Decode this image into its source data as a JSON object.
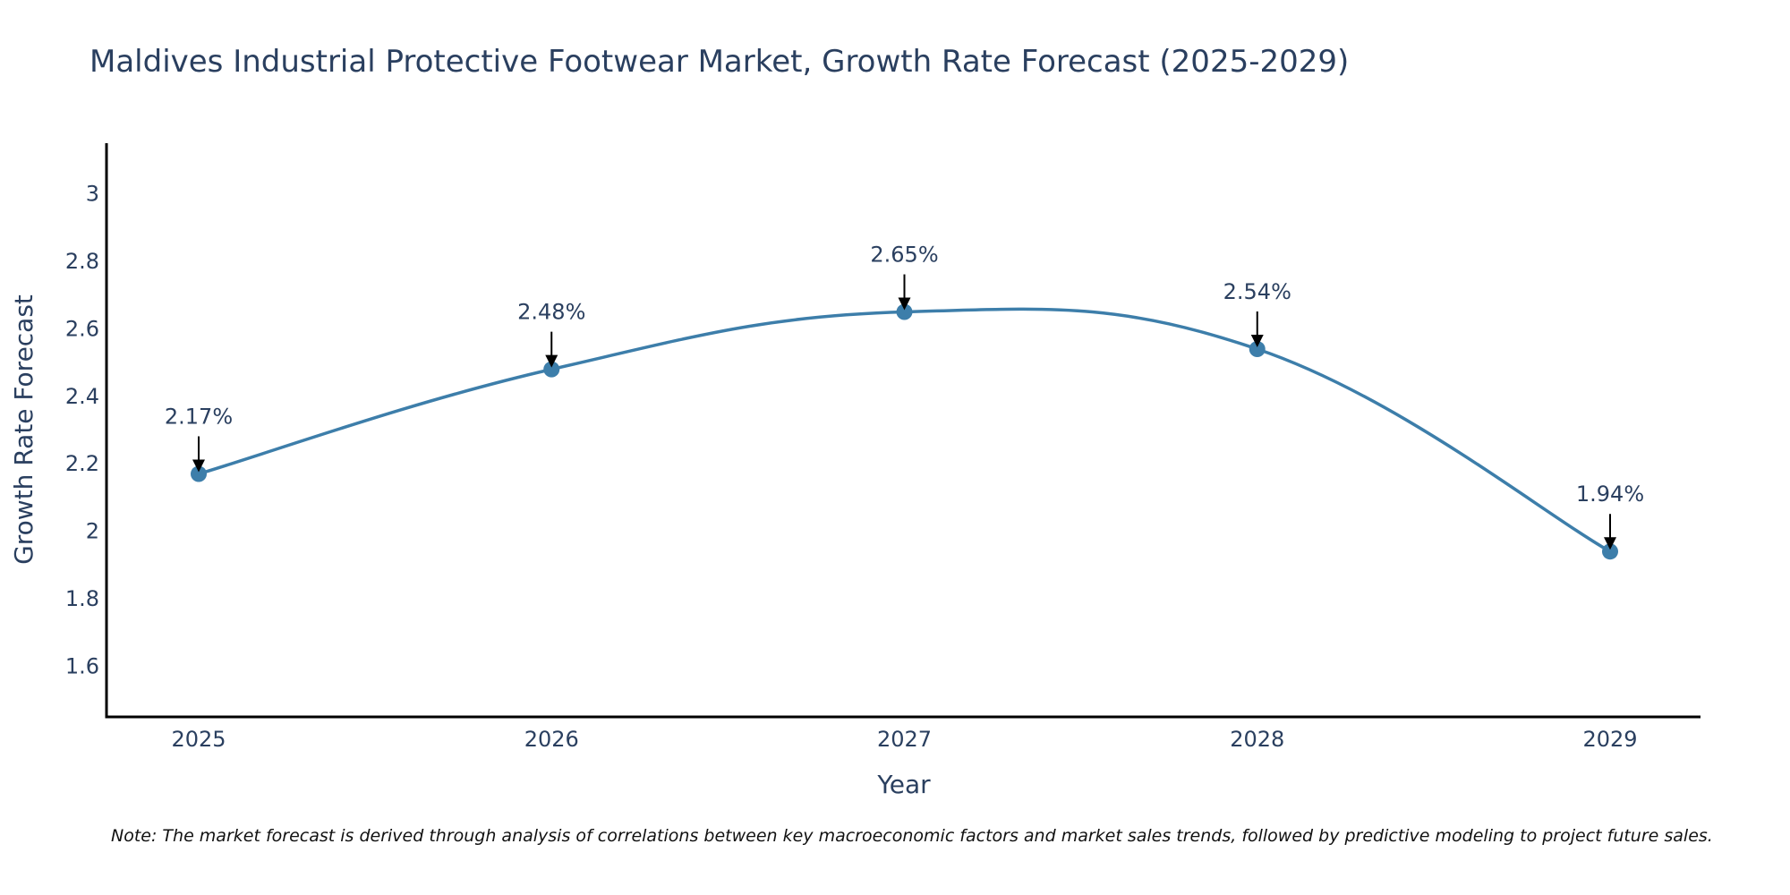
{
  "chart_data": {
    "type": "line",
    "title": "Maldives Industrial Protective Footwear Market, Growth Rate Forecast (2025-2029)",
    "xlabel": "Year",
    "ylabel": "Growth Rate Forecast",
    "categories": [
      "2025",
      "2026",
      "2027",
      "2028",
      "2029"
    ],
    "values": [
      2.17,
      2.48,
      2.65,
      2.54,
      1.94
    ],
    "data_labels": [
      "2.17%",
      "2.48%",
      "2.65%",
      "2.54%",
      "1.94%"
    ],
    "ylim": [
      1.45,
      3.15
    ],
    "yticks": [
      1.6,
      1.8,
      2,
      2.2,
      2.4,
      2.6,
      2.8,
      3
    ],
    "ytick_labels": [
      "1.6",
      "1.8",
      "2",
      "2.2",
      "2.4",
      "2.6",
      "2.8",
      "3"
    ],
    "line_shape": "spline",
    "grid": false,
    "legend": "none",
    "note": "Note: The market forecast is derived through analysis of correlations between key macroeconomic factors and market sales trends, followed by predictive modeling to project future sales.",
    "colors": {
      "line": "#3d7eaa",
      "marker": "#3d7eaa",
      "text": "#2a3f5f",
      "arrow": "#000000",
      "axis": "#000000"
    }
  }
}
